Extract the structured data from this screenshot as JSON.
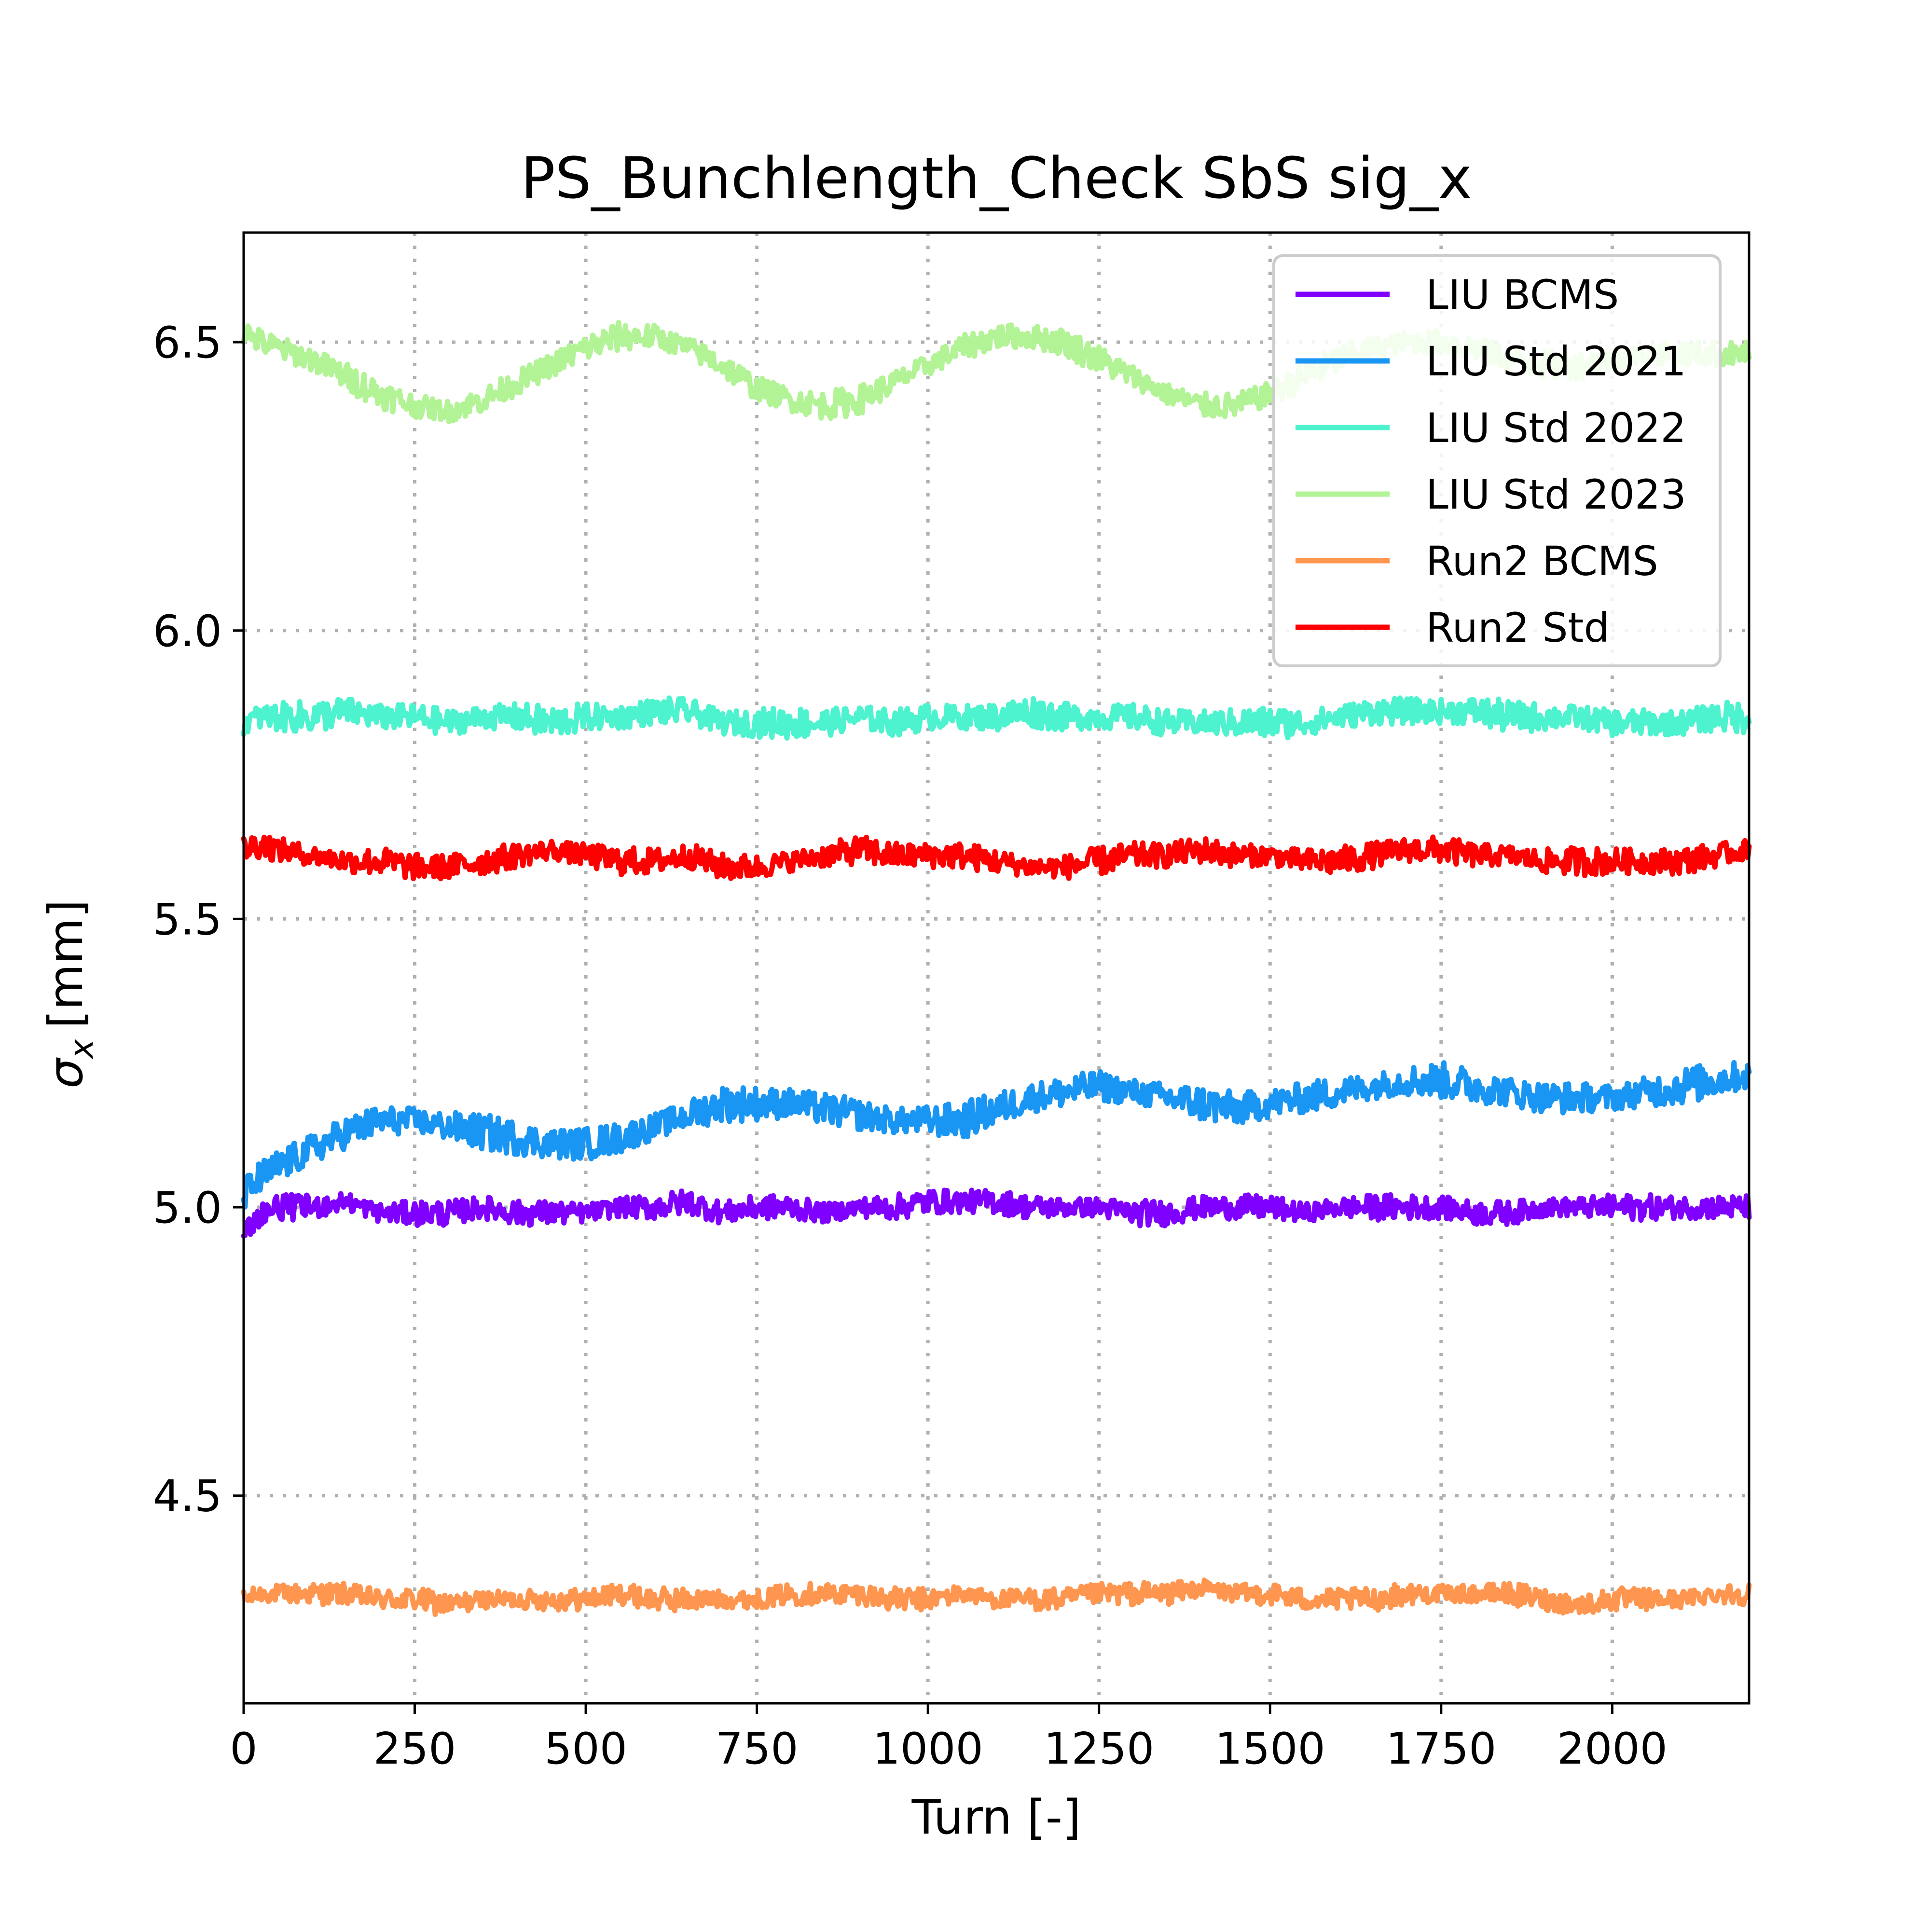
{
  "chart_data": {
    "type": "line",
    "title": "PS_Bunchlength_Check SbS sig_x",
    "xlabel": "Turn [-]",
    "ylabel_symbol": "σ",
    "ylabel_subscript": "x",
    "ylabel_unit": "[mm]",
    "xlim": [
      0,
      2200
    ],
    "ylim": [
      4.14,
      6.69
    ],
    "xticks": [
      0,
      250,
      500,
      750,
      1000,
      1250,
      1500,
      1750,
      2000
    ],
    "xtick_labels": [
      "0",
      "250",
      "500",
      "750",
      "1000",
      "1250",
      "1500",
      "1750",
      "2000"
    ],
    "yticks": [
      4.5,
      5.0,
      5.5,
      6.0,
      6.5
    ],
    "ytick_labels": [
      "4.5",
      "5.0",
      "5.5",
      "6.0",
      "6.5"
    ],
    "grid": true,
    "legend_position": "top-right",
    "series": [
      {
        "name": "LIU BCMS",
        "color": "#8000ff",
        "noise": 0.022,
        "x": [
          0,
          25,
          50,
          100,
          150,
          200,
          250,
          300,
          350,
          400,
          450,
          500,
          550,
          600,
          650,
          700,
          750,
          800,
          850,
          900,
          950,
          1000,
          1050,
          1100,
          1150,
          1200,
          1250,
          1300,
          1350,
          1400,
          1450,
          1500,
          1550,
          1600,
          1650,
          1700,
          1750,
          1800,
          1850,
          1900,
          1950,
          2000,
          2050,
          2100,
          2150,
          2200
        ],
        "y": [
          4.95,
          4.99,
          5.0,
          5.0,
          5.01,
          4.99,
          4.99,
          4.99,
          5.0,
          4.99,
          4.99,
          4.99,
          5.0,
          5.0,
          5.01,
          4.99,
          5.0,
          5.0,
          4.99,
          5.0,
          5.0,
          5.01,
          5.01,
          5.01,
          5.0,
          5.0,
          5.0,
          4.99,
          4.99,
          5.0,
          5.0,
          5.0,
          4.99,
          5.0,
          5.0,
          5.0,
          5.0,
          4.99,
          4.99,
          5.0,
          5.0,
          5.0,
          5.0,
          5.0,
          5.0,
          5.0
        ]
      },
      {
        "name": "LIU Std 2021",
        "color": "#1996f3",
        "noise": 0.03,
        "x": [
          0,
          25,
          50,
          100,
          150,
          200,
          250,
          300,
          350,
          400,
          450,
          500,
          550,
          600,
          650,
          700,
          750,
          800,
          850,
          900,
          950,
          1000,
          1050,
          1100,
          1150,
          1200,
          1250,
          1300,
          1350,
          1400,
          1450,
          1500,
          1550,
          1600,
          1650,
          1700,
          1750,
          1800,
          1850,
          1900,
          1950,
          2000,
          2050,
          2100,
          2150,
          2200
        ],
        "y": [
          5.02,
          5.05,
          5.07,
          5.1,
          5.13,
          5.15,
          5.15,
          5.14,
          5.13,
          5.12,
          5.11,
          5.11,
          5.12,
          5.14,
          5.16,
          5.18,
          5.18,
          5.18,
          5.17,
          5.16,
          5.15,
          5.15,
          5.15,
          5.17,
          5.19,
          5.2,
          5.21,
          5.2,
          5.19,
          5.18,
          5.17,
          5.18,
          5.19,
          5.2,
          5.21,
          5.22,
          5.22,
          5.21,
          5.2,
          5.19,
          5.19,
          5.19,
          5.2,
          5.21,
          5.22,
          5.23
        ]
      },
      {
        "name": "LIU Std 2022",
        "color": "#4df3ce",
        "noise": 0.026,
        "x": [
          0,
          25,
          50,
          100,
          150,
          200,
          250,
          300,
          350,
          400,
          450,
          500,
          550,
          600,
          650,
          700,
          750,
          800,
          850,
          900,
          950,
          1000,
          1050,
          1100,
          1150,
          1200,
          1250,
          1300,
          1350,
          1400,
          1450,
          1500,
          1550,
          1600,
          1650,
          1700,
          1750,
          1800,
          1850,
          1900,
          1950,
          2000,
          2050,
          2100,
          2150,
          2200
        ],
        "y": [
          5.84,
          5.85,
          5.85,
          5.85,
          5.86,
          5.85,
          5.85,
          5.84,
          5.85,
          5.85,
          5.84,
          5.85,
          5.85,
          5.86,
          5.86,
          5.84,
          5.84,
          5.84,
          5.84,
          5.85,
          5.84,
          5.85,
          5.85,
          5.85,
          5.86,
          5.85,
          5.85,
          5.85,
          5.84,
          5.84,
          5.84,
          5.84,
          5.84,
          5.85,
          5.86,
          5.86,
          5.86,
          5.86,
          5.85,
          5.85,
          5.85,
          5.84,
          5.84,
          5.84,
          5.85,
          5.85
        ]
      },
      {
        "name": "LIU Std 2023",
        "color": "#b2f396",
        "noise": 0.024,
        "x": [
          0,
          25,
          50,
          100,
          150,
          200,
          250,
          300,
          350,
          400,
          450,
          500,
          550,
          600,
          650,
          700,
          750,
          800,
          850,
          900,
          950,
          1000,
          1050,
          1100,
          1150,
          1200,
          1250,
          1300,
          1350,
          1400,
          1450,
          1500,
          1550,
          1600,
          1650,
          1700,
          1750,
          1800,
          1850,
          1900,
          1950,
          2000,
          2050,
          2100,
          2150,
          2200
        ],
        "y": [
          6.52,
          6.5,
          6.49,
          6.47,
          6.44,
          6.41,
          6.39,
          6.38,
          6.4,
          6.43,
          6.46,
          6.49,
          6.51,
          6.51,
          6.49,
          6.46,
          6.42,
          6.4,
          6.39,
          6.4,
          6.43,
          6.46,
          6.49,
          6.51,
          6.51,
          6.5,
          6.47,
          6.44,
          6.41,
          6.39,
          6.39,
          6.41,
          6.44,
          6.47,
          6.49,
          6.5,
          6.5,
          6.49,
          6.47,
          6.46,
          6.46,
          6.47,
          6.48,
          6.48,
          6.48,
          6.48
        ]
      },
      {
        "name": "Run2 BCMS",
        "color": "#ff964f",
        "noise": 0.02,
        "x": [
          0,
          25,
          50,
          100,
          150,
          200,
          250,
          300,
          350,
          400,
          450,
          500,
          550,
          600,
          650,
          700,
          750,
          800,
          850,
          900,
          950,
          1000,
          1050,
          1100,
          1150,
          1200,
          1250,
          1300,
          1350,
          1400,
          1450,
          1500,
          1550,
          1600,
          1650,
          1700,
          1750,
          1800,
          1850,
          1900,
          1950,
          2000,
          2050,
          2100,
          2150,
          2200
        ],
        "y": [
          4.32,
          4.33,
          4.33,
          4.33,
          4.33,
          4.32,
          4.32,
          4.31,
          4.32,
          4.32,
          4.32,
          4.32,
          4.33,
          4.32,
          4.32,
          4.32,
          4.32,
          4.33,
          4.33,
          4.33,
          4.32,
          4.32,
          4.33,
          4.32,
          4.32,
          4.32,
          4.33,
          4.33,
          4.33,
          4.34,
          4.33,
          4.33,
          4.32,
          4.32,
          4.32,
          4.33,
          4.33,
          4.33,
          4.33,
          4.32,
          4.31,
          4.32,
          4.32,
          4.32,
          4.33,
          4.33
        ]
      },
      {
        "name": "Run2 Std",
        "color": "#ff0000",
        "noise": 0.024,
        "x": [
          0,
          25,
          50,
          100,
          150,
          200,
          250,
          300,
          350,
          400,
          450,
          500,
          550,
          600,
          650,
          700,
          750,
          800,
          850,
          900,
          950,
          1000,
          1050,
          1100,
          1150,
          1200,
          1250,
          1300,
          1350,
          1400,
          1450,
          1500,
          1550,
          1600,
          1650,
          1700,
          1750,
          1800,
          1850,
          1900,
          1950,
          2000,
          2050,
          2100,
          2150,
          2200
        ],
        "y": [
          5.62,
          5.63,
          5.62,
          5.61,
          5.6,
          5.6,
          5.59,
          5.59,
          5.6,
          5.61,
          5.62,
          5.61,
          5.6,
          5.6,
          5.61,
          5.59,
          5.59,
          5.6,
          5.61,
          5.62,
          5.61,
          5.61,
          5.61,
          5.6,
          5.59,
          5.59,
          5.6,
          5.61,
          5.61,
          5.62,
          5.61,
          5.61,
          5.6,
          5.6,
          5.61,
          5.62,
          5.62,
          5.61,
          5.61,
          5.6,
          5.6,
          5.6,
          5.6,
          5.6,
          5.61,
          5.62
        ]
      }
    ]
  }
}
